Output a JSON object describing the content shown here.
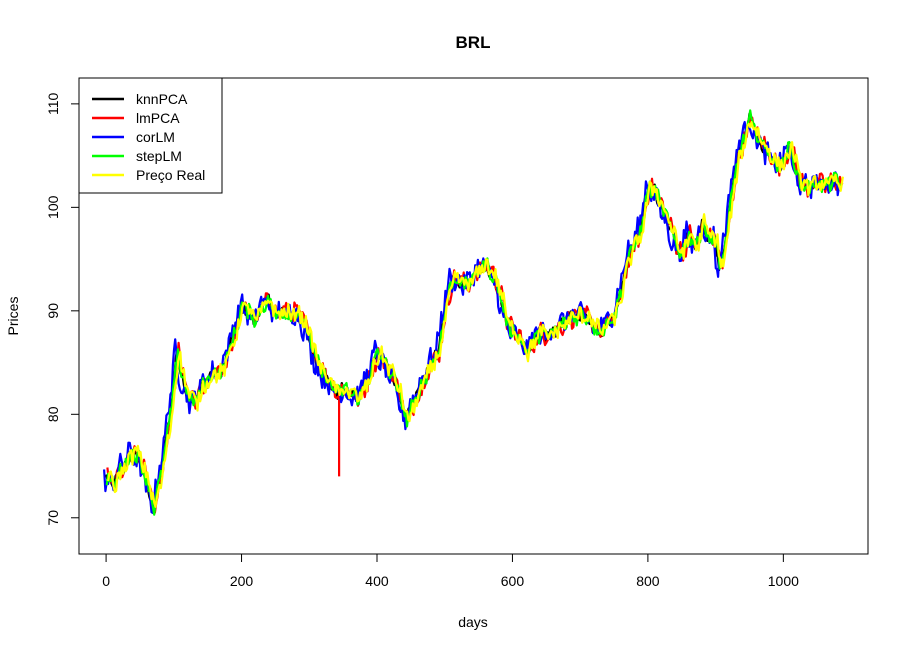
{
  "chart_data": {
    "type": "line",
    "title": "BRL",
    "xlabel": "days",
    "ylabel": "Prices",
    "xlim": [
      -40,
      1125
    ],
    "ylim": [
      66.5,
      112.5
    ],
    "x_ticks": [
      0,
      200,
      400,
      600,
      800,
      1000
    ],
    "y_ticks": [
      70,
      80,
      90,
      100,
      110
    ],
    "grid": false,
    "legend_position": "top-left",
    "series": [
      {
        "name": "knnPCA",
        "color": "#000000"
      },
      {
        "name": "lmPCA",
        "color": "#ff0000"
      },
      {
        "name": "corLM",
        "color": "#0000ff"
      },
      {
        "name": "stepLM",
        "color": "#00ff00"
      },
      {
        "name": "Preço Real",
        "color": "#ffff00"
      }
    ],
    "base_path": [
      [
        0,
        74
      ],
      [
        10,
        73
      ],
      [
        20,
        74.5
      ],
      [
        30,
        75.5
      ],
      [
        40,
        76.5
      ],
      [
        50,
        75.5
      ],
      [
        60,
        73.5
      ],
      [
        70,
        71
      ],
      [
        80,
        74
      ],
      [
        90,
        78
      ],
      [
        100,
        83
      ],
      [
        105,
        86.5
      ],
      [
        110,
        84
      ],
      [
        120,
        82
      ],
      [
        130,
        81
      ],
      [
        140,
        82.5
      ],
      [
        150,
        83.5
      ],
      [
        160,
        84
      ],
      [
        170,
        84
      ],
      [
        180,
        86
      ],
      [
        190,
        88
      ],
      [
        200,
        90.5
      ],
      [
        210,
        90
      ],
      [
        220,
        89
      ],
      [
        230,
        90.5
      ],
      [
        240,
        91
      ],
      [
        250,
        89.5
      ],
      [
        260,
        90
      ],
      [
        270,
        89.5
      ],
      [
        280,
        90
      ],
      [
        290,
        89
      ],
      [
        300,
        87.5
      ],
      [
        310,
        85
      ],
      [
        320,
        84
      ],
      [
        330,
        83
      ],
      [
        340,
        82
      ],
      [
        350,
        82.5
      ],
      [
        360,
        82
      ],
      [
        370,
        81.5
      ],
      [
        380,
        82.5
      ],
      [
        390,
        84
      ],
      [
        400,
        86
      ],
      [
        410,
        85
      ],
      [
        420,
        84
      ],
      [
        430,
        82.5
      ],
      [
        440,
        80
      ],
      [
        445,
        79.5
      ],
      [
        450,
        80.5
      ],
      [
        460,
        82
      ],
      [
        470,
        83.5
      ],
      [
        480,
        85
      ],
      [
        490,
        86
      ],
      [
        500,
        90
      ],
      [
        510,
        93
      ],
      [
        520,
        93
      ],
      [
        530,
        92.5
      ],
      [
        540,
        93
      ],
      [
        550,
        94
      ],
      [
        560,
        94.5
      ],
      [
        570,
        93.5
      ],
      [
        580,
        92
      ],
      [
        590,
        89
      ],
      [
        600,
        88
      ],
      [
        610,
        87.5
      ],
      [
        620,
        86
      ],
      [
        630,
        87
      ],
      [
        640,
        88
      ],
      [
        650,
        87.5
      ],
      [
        660,
        88
      ],
      [
        670,
        88.5
      ],
      [
        680,
        89
      ],
      [
        690,
        89.5
      ],
      [
        700,
        89.5
      ],
      [
        710,
        89.5
      ],
      [
        720,
        88.5
      ],
      [
        730,
        88
      ],
      [
        740,
        89
      ],
      [
        750,
        89.5
      ],
      [
        760,
        92
      ],
      [
        770,
        95
      ],
      [
        780,
        96.5
      ],
      [
        790,
        98
      ],
      [
        800,
        102
      ],
      [
        810,
        101.5
      ],
      [
        820,
        100
      ],
      [
        830,
        98.5
      ],
      [
        840,
        96.5
      ],
      [
        850,
        95.5
      ],
      [
        860,
        97.5
      ],
      [
        870,
        96
      ],
      [
        880,
        98.5
      ],
      [
        890,
        97
      ],
      [
        900,
        97
      ],
      [
        905,
        94
      ],
      [
        910,
        95
      ],
      [
        920,
        99.5
      ],
      [
        930,
        104
      ],
      [
        940,
        106.5
      ],
      [
        950,
        108.5
      ],
      [
        960,
        107
      ],
      [
        970,
        106
      ],
      [
        980,
        105
      ],
      [
        990,
        104
      ],
      [
        1000,
        104.5
      ],
      [
        1010,
        106
      ],
      [
        1020,
        103
      ],
      [
        1030,
        102
      ],
      [
        1040,
        102
      ],
      [
        1050,
        102.5
      ],
      [
        1060,
        102
      ],
      [
        1070,
        102.5
      ],
      [
        1080,
        102.5
      ],
      [
        1085,
        102
      ]
    ],
    "spike": {
      "series": "lmPCA",
      "x": 344,
      "y": 74
    }
  }
}
